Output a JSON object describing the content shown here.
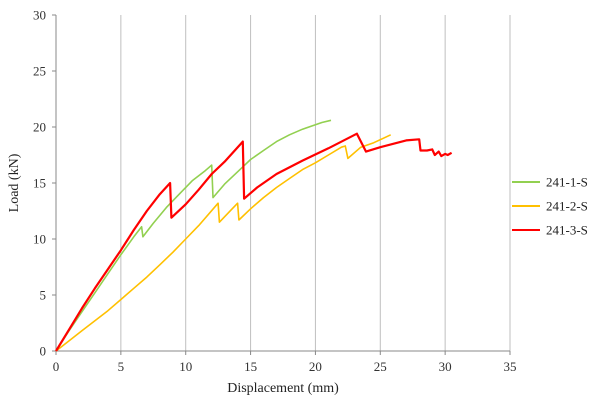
{
  "chart_data": {
    "type": "line",
    "title": "",
    "xlabel": "Displacement (mm)",
    "ylabel": "Load (kN)",
    "xlim": [
      0,
      35
    ],
    "ylim": [
      0,
      30
    ],
    "x_ticks": [
      0,
      5,
      10,
      15,
      20,
      25,
      30,
      35
    ],
    "y_ticks": [
      0,
      5,
      10,
      15,
      20,
      25,
      30
    ],
    "grid": "vertical",
    "legend_position": "right",
    "series": [
      {
        "name": "241-1-S",
        "color": "#92d050",
        "x": [
          0,
          1,
          2,
          3,
          4,
          5,
          6,
          6.6,
          6.7,
          7.5,
          8.5,
          9.5,
          10.5,
          11.5,
          12.0,
          12.1,
          13.0,
          14.0,
          15.0,
          16.0,
          17.0,
          18.0,
          19.0,
          20.0,
          20.5,
          21.2
        ],
        "y": [
          0,
          1.8,
          3.5,
          5.2,
          6.9,
          8.6,
          10.2,
          11.1,
          10.2,
          11.4,
          12.8,
          14.0,
          15.2,
          16.1,
          16.6,
          13.7,
          14.9,
          16.0,
          17.1,
          17.9,
          18.7,
          19.3,
          19.8,
          20.2,
          20.4,
          20.6
        ]
      },
      {
        "name": "241-2-S",
        "color": "#ffc000",
        "x": [
          0,
          1,
          2,
          3,
          4,
          5,
          6,
          7,
          8,
          9,
          10,
          11,
          12.5,
          12.6,
          13.5,
          14.0,
          14.1,
          15,
          16,
          17,
          18,
          19,
          20,
          21,
          22,
          22.3,
          22.5,
          23.5,
          24.5,
          25.8
        ],
        "y": [
          0,
          0.9,
          1.8,
          2.7,
          3.6,
          4.6,
          5.6,
          6.6,
          7.7,
          8.8,
          10.0,
          11.2,
          13.2,
          11.5,
          12.6,
          13.2,
          11.7,
          12.7,
          13.7,
          14.6,
          15.4,
          16.2,
          16.8,
          17.5,
          18.2,
          18.3,
          17.2,
          18.2,
          18.6,
          19.3
        ]
      },
      {
        "name": "241-3-S",
        "color": "#ff0000",
        "x": [
          0,
          1,
          2,
          3,
          4,
          5,
          6,
          7,
          8,
          8.8,
          8.9,
          10,
          11,
          12,
          13,
          14.4,
          14.5,
          15.5,
          17,
          19,
          21,
          23.2,
          23.9,
          25,
          27,
          28,
          28.1,
          28.6,
          29.0,
          29.2,
          29.5,
          29.7,
          30.0,
          30.2,
          30.5
        ],
        "y": [
          0,
          1.9,
          3.8,
          5.6,
          7.3,
          9.0,
          10.8,
          12.5,
          14.0,
          15.0,
          11.9,
          13.1,
          14.4,
          15.8,
          16.9,
          18.7,
          13.6,
          14.6,
          15.8,
          17.0,
          18.1,
          19.4,
          17.8,
          18.2,
          18.8,
          18.9,
          17.9,
          17.9,
          18.0,
          17.5,
          17.8,
          17.4,
          17.6,
          17.5,
          17.7
        ]
      }
    ]
  }
}
